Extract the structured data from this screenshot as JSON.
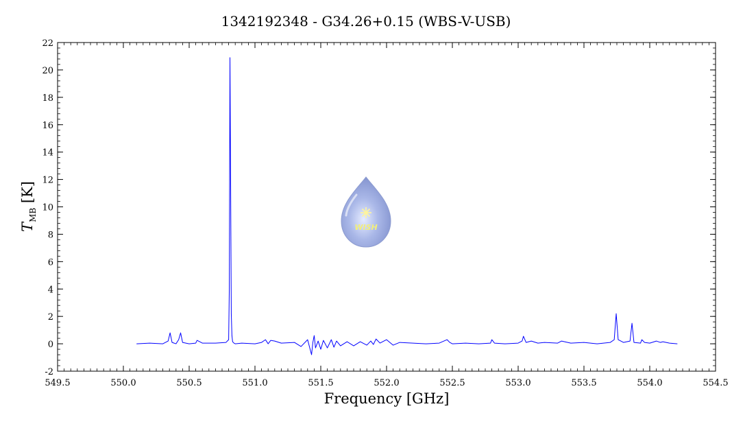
{
  "chart_data": {
    "type": "line",
    "title": "1342192348 - G34.26+0.15 (WBS-V-USB)",
    "xlabel": "Frequency [GHz]",
    "ylabel_main": "T",
    "ylabel_sub": "MB",
    "ylabel_unit": " [K]",
    "xlim": [
      549.5,
      554.5
    ],
    "ylim": [
      -2,
      22
    ],
    "xticks": [
      "549.5",
      "550.0",
      "550.5",
      "551.0",
      "551.5",
      "552.0",
      "552.5",
      "553.0",
      "553.5",
      "554.0",
      "554.5"
    ],
    "yticks": [
      "-2",
      "0",
      "2",
      "4",
      "6",
      "8",
      "10",
      "12",
      "14",
      "16",
      "18",
      "20",
      "22"
    ],
    "grid": false,
    "line_color": "#0000ff",
    "series": [
      {
        "x": [
          550.1,
          550.2,
          550.3,
          550.34,
          550.355,
          550.37,
          550.4,
          550.42,
          550.435,
          550.45,
          550.5,
          550.55,
          550.56,
          550.6,
          550.7,
          550.78,
          550.8,
          550.805,
          550.81,
          550.815,
          550.82,
          550.825,
          550.83,
          550.835,
          550.84,
          550.85,
          550.9,
          551.0,
          551.05,
          551.08,
          551.1,
          551.12,
          551.15,
          551.2,
          551.3,
          551.35,
          551.4,
          551.43,
          551.44,
          551.45,
          551.46,
          551.48,
          551.5,
          551.52,
          551.55,
          551.58,
          551.6,
          551.62,
          551.65,
          551.7,
          551.75,
          551.8,
          551.85,
          551.88,
          551.9,
          551.92,
          551.95,
          552.0,
          552.05,
          552.1,
          552.2,
          552.3,
          552.4,
          552.46,
          552.48,
          552.5,
          552.6,
          552.7,
          552.79,
          552.8,
          552.82,
          552.9,
          553.0,
          553.03,
          553.04,
          553.06,
          553.1,
          553.15,
          553.2,
          553.3,
          553.33,
          553.4,
          553.5,
          553.6,
          553.7,
          553.73,
          553.745,
          553.76,
          553.8,
          553.85,
          553.865,
          553.88,
          553.93,
          553.94,
          553.96,
          554.0,
          554.05,
          554.08,
          554.1,
          554.15,
          554.21
        ],
        "y": [
          0.0,
          0.05,
          0.0,
          0.2,
          0.8,
          0.1,
          0.0,
          0.3,
          0.8,
          0.1,
          0.0,
          0.05,
          0.25,
          0.05,
          0.05,
          0.1,
          0.3,
          4.0,
          20.9,
          12.0,
          2.2,
          0.6,
          0.15,
          0.1,
          0.05,
          0.0,
          0.05,
          0.0,
          0.1,
          0.3,
          0.0,
          0.25,
          0.2,
          0.05,
          0.1,
          -0.2,
          0.3,
          -0.8,
          0.1,
          0.6,
          -0.3,
          0.2,
          -0.4,
          0.25,
          -0.3,
          0.3,
          -0.25,
          0.2,
          -0.15,
          0.15,
          -0.15,
          0.15,
          -0.1,
          0.2,
          -0.05,
          0.35,
          0.05,
          0.3,
          -0.1,
          0.1,
          0.05,
          0.0,
          0.05,
          0.3,
          0.1,
          0.0,
          0.05,
          0.0,
          0.05,
          0.3,
          0.05,
          0.0,
          0.05,
          0.2,
          0.55,
          0.1,
          0.2,
          0.05,
          0.1,
          0.05,
          0.2,
          0.05,
          0.1,
          0.0,
          0.1,
          0.3,
          2.2,
          0.3,
          0.1,
          0.2,
          1.5,
          0.1,
          0.05,
          0.3,
          0.1,
          0.05,
          0.2,
          0.1,
          0.15,
          0.05,
          0.0
        ]
      }
    ]
  },
  "logo": {
    "text": "WISH"
  }
}
